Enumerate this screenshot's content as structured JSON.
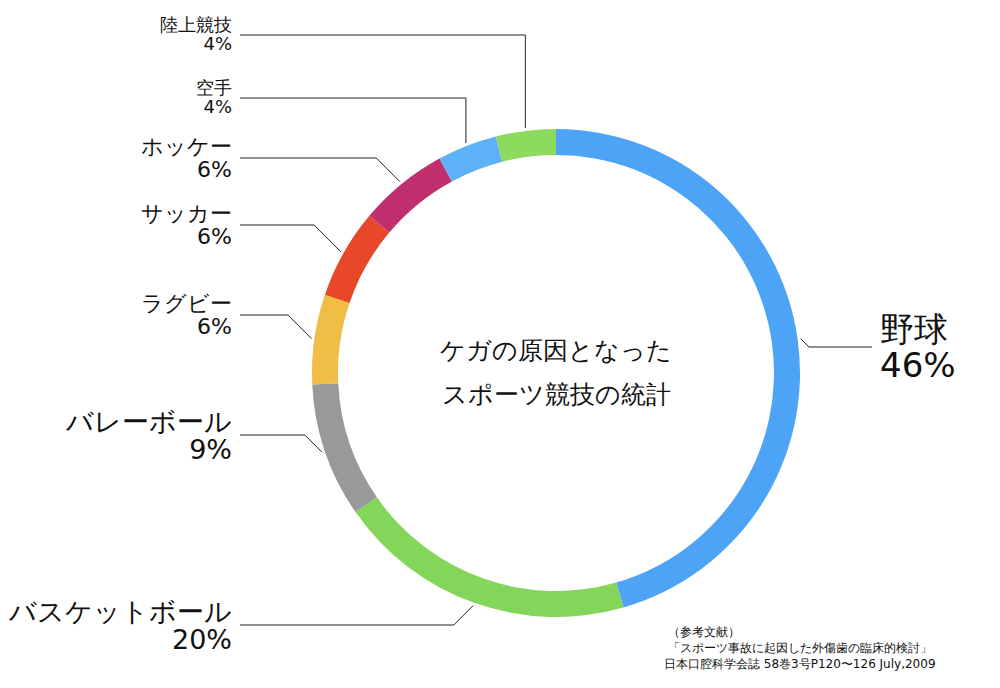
{
  "chart_data": {
    "type": "donut",
    "title": [
      "ケガの原因となった",
      "スポーツ競技の統計"
    ],
    "categories": [
      "野球",
      "バスケットボール",
      "バレーボール",
      "ラグビー",
      "サッカー",
      "ホッケー",
      "空手",
      "陸上競技"
    ],
    "values": [
      46,
      20,
      9,
      6,
      6,
      6,
      4,
      4
    ],
    "value_labels": [
      "46%",
      "20%",
      "9%",
      "6%",
      "6%",
      "6%",
      "4%",
      "4%"
    ],
    "colors": [
      "#4da3f5",
      "#84d65a",
      "#999999",
      "#f0bd45",
      "#e8472a",
      "#c0306e",
      "#5cb1f8",
      "#8cdb5f"
    ],
    "data_labels": true,
    "source": [
      "（参考文献）",
      "「スポーツ事故に起因した外傷歯の臨床的検討」",
      "日本口腔科学会誌 58巻3号P120〜126 July,2009"
    ]
  }
}
